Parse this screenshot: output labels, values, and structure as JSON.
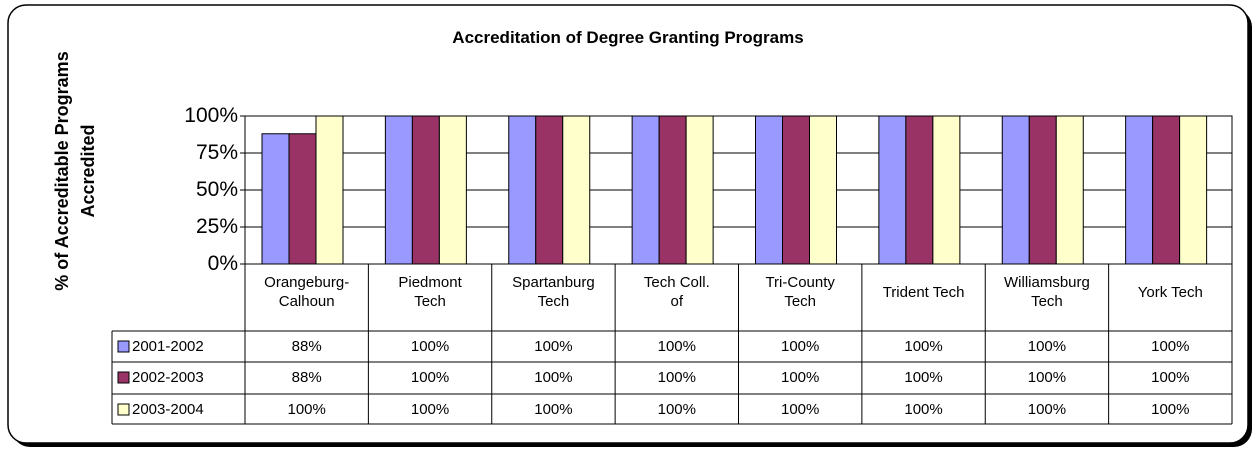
{
  "chart_data": {
    "type": "bar",
    "title": "Accreditation of Degree Granting Programs",
    "y_label": "% of Accreditable Programs\nAccredited",
    "categories": [
      "Orangeburg-\nCalhoun",
      "Piedmont\nTech",
      "Spartanburg\nTech",
      "Tech Coll.\nof",
      "Tri-County\nTech",
      "Trident Tech",
      "Williamsburg\nTech",
      "York Tech"
    ],
    "series": [
      {
        "name": "2001-2002",
        "color": "#9999ff",
        "values": [
          88,
          100,
          100,
          100,
          100,
          100,
          100,
          100
        ],
        "value_labels": [
          "88%",
          "100%",
          "100%",
          "100%",
          "100%",
          "100%",
          "100%",
          "100%"
        ]
      },
      {
        "name": "2002-2003",
        "color": "#993366",
        "values": [
          88,
          100,
          100,
          100,
          100,
          100,
          100,
          100
        ],
        "value_labels": [
          "88%",
          "100%",
          "100%",
          "100%",
          "100%",
          "100%",
          "100%",
          "100%"
        ]
      },
      {
        "name": "2003-2004",
        "color": "#ffffcc",
        "values": [
          100,
          100,
          100,
          100,
          100,
          100,
          100,
          100
        ],
        "value_labels": [
          "100%",
          "100%",
          "100%",
          "100%",
          "100%",
          "100%",
          "100%",
          "100%"
        ]
      }
    ],
    "ylim": [
      0,
      100
    ],
    "yticks": [
      {
        "value": 0,
        "label": "0%"
      },
      {
        "value": 25,
        "label": "25%"
      },
      {
        "value": 50,
        "label": "50%"
      },
      {
        "value": 75,
        "label": "75%"
      },
      {
        "value": 100,
        "label": "100%"
      }
    ],
    "grid": true
  }
}
